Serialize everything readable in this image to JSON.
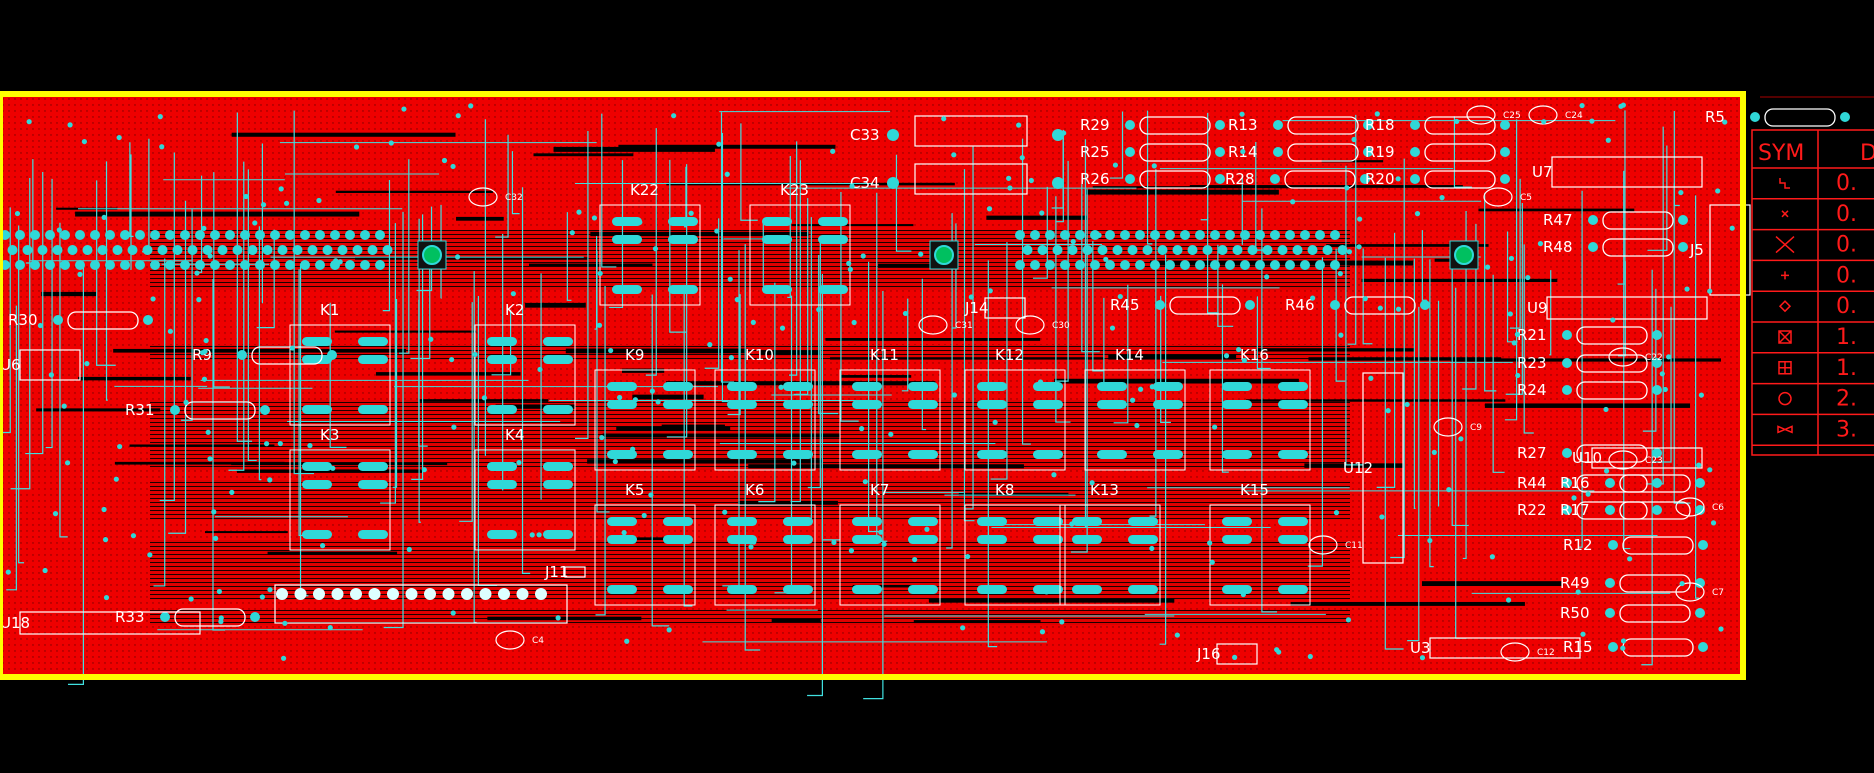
{
  "colors": {
    "background": "#000000",
    "board_copper": "#ee0000",
    "board_outline": "#ffff00",
    "trace": "#40e0e0",
    "pad": "#30d8d8",
    "silkscreen": "#ffffff",
    "drill_table": "#ff1a1a"
  },
  "relays": [
    {
      "label": "K1"
    },
    {
      "label": "K2"
    },
    {
      "label": "K3"
    },
    {
      "label": "K4"
    },
    {
      "label": "K5"
    },
    {
      "label": "K6"
    },
    {
      "label": "K7"
    },
    {
      "label": "K8"
    },
    {
      "label": "K9"
    },
    {
      "label": "K10"
    },
    {
      "label": "K11"
    },
    {
      "label": "K12"
    },
    {
      "label": "K13"
    },
    {
      "label": "K14"
    },
    {
      "label": "K15"
    },
    {
      "label": "K16"
    },
    {
      "label": "K22"
    },
    {
      "label": "K23"
    }
  ],
  "resistors": [
    {
      "label": "R29"
    },
    {
      "label": "R25"
    },
    {
      "label": "R26"
    },
    {
      "label": "R13"
    },
    {
      "label": "R14"
    },
    {
      "label": "R28"
    },
    {
      "label": "R18"
    },
    {
      "label": "R19"
    },
    {
      "label": "R20"
    },
    {
      "label": "R47"
    },
    {
      "label": "R48"
    },
    {
      "label": "R45"
    },
    {
      "label": "R46"
    },
    {
      "label": "R21"
    },
    {
      "label": "R23"
    },
    {
      "label": "R24"
    },
    {
      "label": "R27"
    },
    {
      "label": "R44"
    },
    {
      "label": "R22"
    },
    {
      "label": "R16"
    },
    {
      "label": "R17"
    },
    {
      "label": "R12"
    },
    {
      "label": "R49"
    },
    {
      "label": "R50"
    },
    {
      "label": "R15"
    },
    {
      "label": "R30"
    },
    {
      "label": "R9"
    },
    {
      "label": "R31"
    },
    {
      "label": "R33"
    },
    {
      "label": "R5"
    }
  ],
  "capacitors": [
    {
      "label": "C33"
    },
    {
      "label": "C34"
    },
    {
      "label": "C32"
    },
    {
      "label": "C31"
    },
    {
      "label": "C30"
    },
    {
      "label": "C4"
    },
    {
      "label": "C9"
    },
    {
      "label": "C11"
    },
    {
      "label": "C12"
    },
    {
      "label": "C5"
    },
    {
      "label": "C6"
    },
    {
      "label": "C7"
    },
    {
      "label": "C25"
    },
    {
      "label": "C24"
    },
    {
      "label": "C22"
    },
    {
      "label": "C23"
    }
  ],
  "ics": [
    {
      "label": "U7"
    },
    {
      "label": "U9"
    },
    {
      "label": "U10"
    },
    {
      "label": "U12"
    },
    {
      "label": "U3"
    },
    {
      "label": "U6"
    },
    {
      "label": "U18"
    },
    {
      "label": "J14"
    },
    {
      "label": "J16"
    },
    {
      "label": "J5"
    },
    {
      "label": "J11"
    }
  ],
  "drill_table": {
    "header_sym": "SYM",
    "header_dia": "D",
    "rows": [
      {
        "symbol": "corner-mark",
        "value": "0."
      },
      {
        "symbol": "small-x",
        "value": "0."
      },
      {
        "symbol": "large-x",
        "value": "0."
      },
      {
        "symbol": "plus",
        "value": "0."
      },
      {
        "symbol": "diamond",
        "value": "0."
      },
      {
        "symbol": "boxed-x",
        "value": "1."
      },
      {
        "symbol": "boxed-plus",
        "value": "1."
      },
      {
        "symbol": "circle",
        "value": "2."
      },
      {
        "symbol": "bowtie",
        "value": "3."
      }
    ]
  }
}
